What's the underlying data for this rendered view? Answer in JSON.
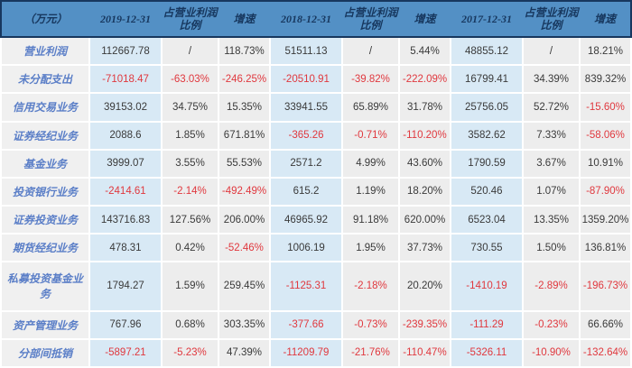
{
  "colors": {
    "header_bg": "#5390c5",
    "header_text": "#17375e",
    "date_column_bg": "#d8e9f5",
    "plain_column_bg": "#ededed",
    "label_column_bg": "#f0f0f0",
    "label_text": "#5a7ec7",
    "negative_value": "#e0383e",
    "normal_value": "#3a3a3a",
    "outer_border": "#17375e"
  },
  "chart_data": {
    "type": "table",
    "unit_label": "（万元）",
    "columns": [
      "（万元）",
      "2019-12-31",
      "占营业利润比例",
      "增速",
      "2018-12-31",
      "占营业利润比例",
      "增速",
      "2017-12-31",
      "占营业利润比例",
      "增速"
    ],
    "rows": [
      {
        "label": "营业利润",
        "values": [
          "112667.78",
          "/",
          "118.73%",
          "51511.13",
          "/",
          "5.44%",
          "48855.12",
          "/",
          "18.21%"
        ]
      },
      {
        "label": "未分配支出",
        "values": [
          "-71018.47",
          "-63.03%",
          "-246.25%",
          "-20510.91",
          "-39.82%",
          "-222.09%",
          "16799.41",
          "34.39%",
          "839.32%"
        ]
      },
      {
        "label": "信用交易业务",
        "values": [
          "39153.02",
          "34.75%",
          "15.35%",
          "33941.55",
          "65.89%",
          "31.78%",
          "25756.05",
          "52.72%",
          "-15.60%"
        ]
      },
      {
        "label": "证券经纪业务",
        "values": [
          "2088.6",
          "1.85%",
          "671.81%",
          "-365.26",
          "-0.71%",
          "-110.20%",
          "3582.62",
          "7.33%",
          "-58.06%"
        ]
      },
      {
        "label": "基金业务",
        "values": [
          "3999.07",
          "3.55%",
          "55.53%",
          "2571.2",
          "4.99%",
          "43.60%",
          "1790.59",
          "3.67%",
          "10.91%"
        ]
      },
      {
        "label": "投资银行业务",
        "values": [
          "-2414.61",
          "-2.14%",
          "-492.49%",
          "615.2",
          "1.19%",
          "18.20%",
          "520.46",
          "1.07%",
          "-87.90%"
        ]
      },
      {
        "label": "证券投资业务",
        "values": [
          "143716.83",
          "127.56%",
          "206.00%",
          "46965.92",
          "91.18%",
          "620.00%",
          "6523.04",
          "13.35%",
          "1359.20%"
        ]
      },
      {
        "label": "期货经纪业务",
        "values": [
          "478.31",
          "0.42%",
          "-52.46%",
          "1006.19",
          "1.95%",
          "37.73%",
          "730.55",
          "1.50%",
          "136.81%"
        ]
      },
      {
        "label": "私募投资基金业务",
        "values": [
          "1794.27",
          "1.59%",
          "259.45%",
          "-1125.31",
          "-2.18%",
          "20.20%",
          "-1410.19",
          "-2.89%",
          "-196.73%"
        ]
      },
      {
        "label": "资产管理业务",
        "values": [
          "767.96",
          "0.68%",
          "303.35%",
          "-377.66",
          "-0.73%",
          "-239.35%",
          "-111.29",
          "-0.23%",
          "66.66%"
        ]
      },
      {
        "label": "分部间抵销",
        "values": [
          "-5897.21",
          "-5.23%",
          "47.39%",
          "-11209.79",
          "-21.76%",
          "-110.47%",
          "-5326.11",
          "-10.90%",
          "-132.64%"
        ]
      }
    ]
  }
}
